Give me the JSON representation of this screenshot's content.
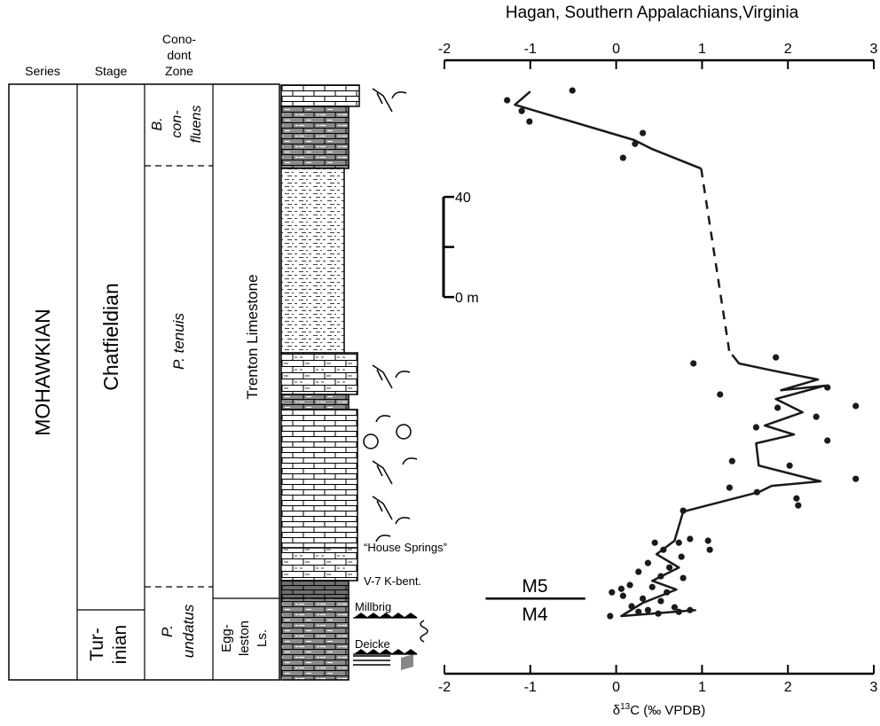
{
  "column": {
    "headers": {
      "series": "Series",
      "stage": "Stage",
      "zone": [
        "Cono-",
        "dont",
        "Zone"
      ]
    },
    "series": "MOHAWKIAN",
    "stages": {
      "chatfieldian": "Chatfieldian",
      "turinian": [
        "Tur-",
        "inian"
      ]
    },
    "zones": {
      "confluens": [
        "B.",
        "con-",
        "fluens"
      ],
      "tenuis": "P. tenuis",
      "undatus": [
        "P.",
        "undatus"
      ]
    },
    "formations": {
      "trenton": "Trenton Limestone",
      "eggleston": [
        "Egg-",
        "leston",
        "Ls."
      ]
    },
    "beds": [
      "“House Springs”",
      "V-7 K-bent.",
      "Millbrig",
      "Deicke"
    ]
  },
  "chart_data": {
    "type": "scatter",
    "title": "Hagan, Southern Appalachians,Virginia",
    "xlabel": [
      "δ",
      "13",
      "C (‰ VPDB)"
    ],
    "xlim": [
      -2,
      3
    ],
    "xticks": [
      -2,
      -1,
      0,
      1,
      2,
      3
    ],
    "ylim": [
      -150.4,
      85
    ],
    "yticks": [
      {
        "value": 0,
        "label": "0 m"
      },
      40
    ],
    "color": "#1a1a1a",
    "points": {
      "x": [
        -0.51,
        -1.27,
        -1.1,
        -1.01,
        0.31,
        0.22,
        0.08,
        0.9,
        1.86,
        1.21,
        2.46,
        2.79,
        1.88,
        2.33,
        2.46,
        1.63,
        1.35,
        2.02,
        2.79,
        2.1,
        2.12,
        1.32,
        1.64,
        0.78,
        0.45,
        0.73,
        0.86,
        1.07,
        1.09,
        0.55,
        0.76,
        0.37,
        0.62,
        0.26,
        0.52,
        0.78,
        0.16,
        0.42,
        0.59,
        0.08,
        0.31,
        0.52,
        -0.05,
        -0.07,
        0.18,
        0.68,
        0.37,
        0.26,
        0.49,
        0.73,
        0.86,
        0.06
      ],
      "y": [
        82.5,
        78.6,
        74.3,
        70.1,
        65.5,
        61.2,
        55.6,
        -26.5,
        -24.1,
        -38.9,
        -36.1,
        -43.5,
        -44.2,
        -47.8,
        -57.3,
        -52.0,
        -65.5,
        -67.3,
        -72.6,
        -80.4,
        -83.2,
        -76.1,
        -77.9,
        -85.3,
        -98.1,
        -98.1,
        -96.6,
        -97.3,
        -100.9,
        -100.9,
        -103.7,
        -106.2,
        -108.0,
        -109.7,
        -111.5,
        -112.2,
        -115.0,
        -115.8,
        -117.9,
        -119.3,
        -120.4,
        -121.4,
        -117.9,
        -127.4,
        -123.5,
        -123.9,
        -125.0,
        -125.7,
        -126.4,
        -125.7,
        -125.0,
        -116.5
      ]
    },
    "line": {
      "x": [
        -1.0,
        -1.18,
        0.21,
        0.42,
        0.99,
        null,
        1.35,
        1.43,
        1.83,
        2.35,
        1.92,
        2.43,
        1.86,
        2.17,
        1.73,
        2.07,
        1.63,
        1.66,
        2.38,
        1.81,
        1.66,
        0.78,
        0.68,
        0.47,
        0.73,
        0.42,
        0.7,
        0.31,
        0.06,
        0.93
      ],
      "y": [
        82.1,
        76.8,
        62.7,
        59.1,
        51.3,
        null,
        -23.0,
        -26.5,
        -29.4,
        -32.9,
        -37.2,
        -35.4,
        -40.7,
        -46.0,
        -51.3,
        -54.9,
        -58.4,
        -67.3,
        -73.6,
        -75.4,
        -77.9,
        -85.7,
        -97.3,
        -102.7,
        -108.0,
        -113.3,
        -116.8,
        -122.1,
        -127.4,
        -125.0
      ]
    },
    "dashed_line": {
      "x": [
        0.99,
        1.32
      ],
      "y": [
        51.3,
        -22.3
      ]
    },
    "boundary": {
      "labels": [
        "M5",
        "M4"
      ],
      "x": [
        -1.52,
        -0.36
      ],
      "y": -120.4
    }
  }
}
